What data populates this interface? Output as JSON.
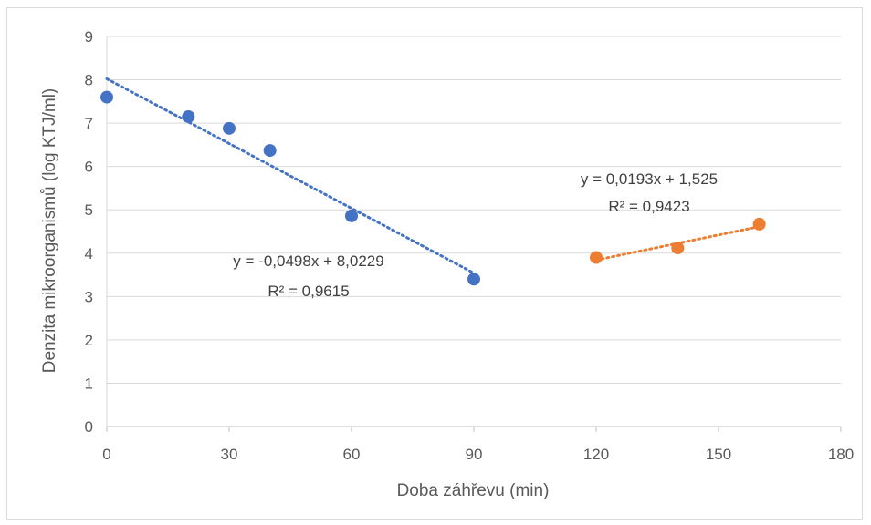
{
  "chart_data": {
    "type": "scatter",
    "title": "",
    "xlabel": "Doba záhřevu (min)",
    "ylabel": "Denzita mikroorganismů (log KTJ/ml)",
    "xlim": [
      0,
      180
    ],
    "ylim": [
      0,
      9
    ],
    "xticks": [
      "0",
      "30",
      "60",
      "90",
      "120",
      "150",
      "180"
    ],
    "yticks": [
      "0",
      "1",
      "2",
      "3",
      "4",
      "5",
      "6",
      "7",
      "8",
      "9"
    ],
    "grid": "horizontal",
    "legend": "none",
    "series": [
      {
        "color": "#4472C4",
        "x": [
          0,
          20,
          30,
          40,
          60,
          90
        ],
        "y": [
          7.6,
          7.15,
          6.88,
          6.37,
          4.86,
          3.4
        ],
        "trendline": {
          "slope": -0.0498,
          "intercept": 8.0229,
          "x_range": [
            0,
            90
          ],
          "equation": "y = -0,0498x + 8,0229",
          "r2": "R² = 0,9615"
        }
      },
      {
        "color": "#ED7D31",
        "x": [
          120,
          140,
          160
        ],
        "y": [
          3.9,
          4.12,
          4.67
        ],
        "trendline": {
          "slope": 0.0193,
          "intercept": 1.525,
          "x_range": [
            120,
            160
          ],
          "equation": "y = 0,0193x + 1,525",
          "r2": "R² = 0,9423"
        }
      }
    ]
  }
}
